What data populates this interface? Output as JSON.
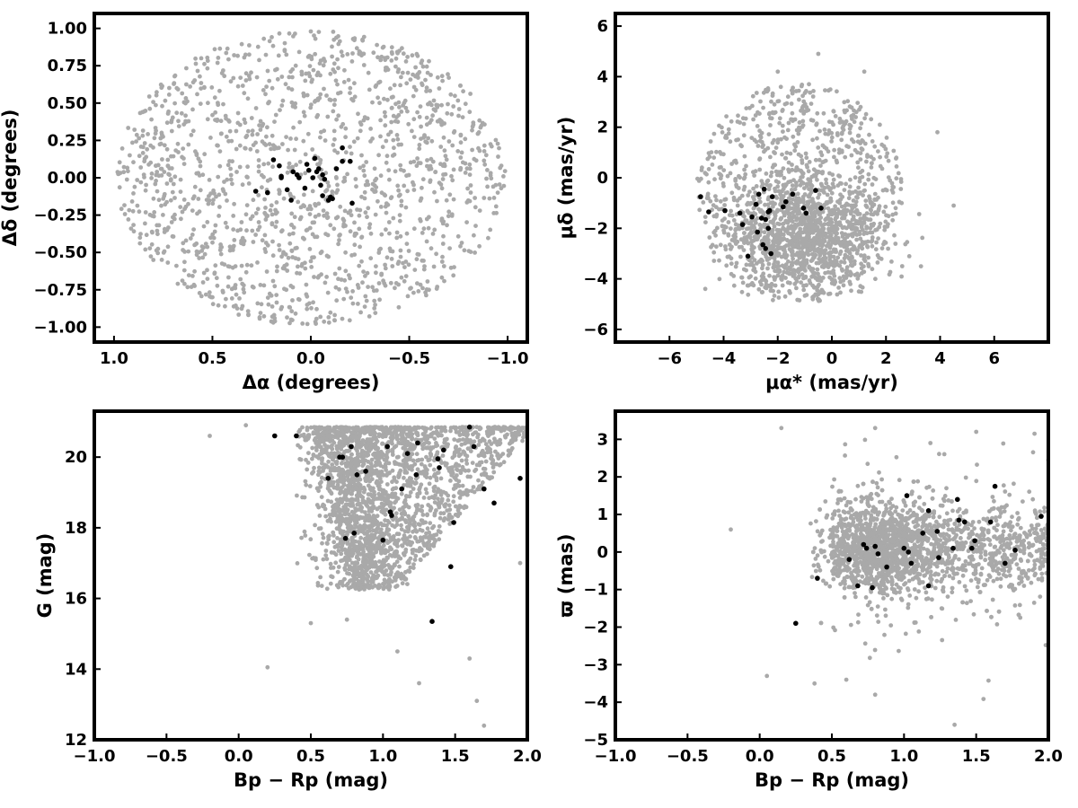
{
  "colors": {
    "field": "#a9a9a9",
    "members": "#000000"
  },
  "chart_data": [
    {
      "type": "scatter",
      "id": "position",
      "xlabel": "Δα (degrees)",
      "ylabel": "Δδ (degrees)",
      "xlim": [
        1.1,
        -1.1
      ],
      "ylim": [
        -1.1,
        1.1
      ],
      "xticks": [
        1.0,
        0.5,
        0.0,
        -0.5,
        -1.0
      ],
      "xtick_labels": [
        "1.0",
        "0.5",
        "0.0",
        "−0.5",
        "−1.0"
      ],
      "yticks": [
        -1.0,
        -0.75,
        -0.5,
        -0.25,
        0.0,
        0.25,
        0.5,
        0.75,
        1.0
      ],
      "ytick_labels": [
        "−1.00",
        "−0.75",
        "−0.50",
        "−0.25",
        "0.00",
        "0.25",
        "0.50",
        "0.75",
        "1.00"
      ],
      "grid": false,
      "series": [
        {
          "role": "field",
          "color": "#a9a9a9",
          "distribution": "uniform disk of radius 1.0 deg, ~1500 stars",
          "points": [
            [
              0.92,
              0.15
            ],
            [
              0.8,
              -0.55
            ],
            [
              0.5,
              -0.8
            ],
            [
              0.0,
              0.98
            ],
            [
              -0.45,
              0.85
            ],
            [
              -0.95,
              -0.1
            ],
            [
              -0.6,
              -0.75
            ],
            [
              0.3,
              0.4
            ],
            [
              -0.2,
              0.6
            ],
            [
              0.1,
              -0.95
            ]
          ]
        },
        {
          "role": "members",
          "color": "#000000",
          "points": [
            [
              0.28,
              -0.09
            ],
            [
              0.22,
              -0.1
            ],
            [
              0.19,
              0.12
            ],
            [
              0.16,
              0.08
            ],
            [
              0.15,
              0.0
            ],
            [
              0.15,
              0.01
            ],
            [
              0.12,
              -0.08
            ],
            [
              0.1,
              -0.15
            ],
            [
              0.09,
              0.04
            ],
            [
              0.07,
              0.02
            ],
            [
              0.06,
              0.0
            ],
            [
              0.03,
              -0.07
            ],
            [
              0.02,
              0.09
            ],
            [
              0.01,
              0.05
            ],
            [
              -0.01,
              0.0
            ],
            [
              -0.02,
              0.13
            ],
            [
              -0.03,
              0.04
            ],
            [
              -0.04,
              0.06
            ],
            [
              -0.05,
              -0.05
            ],
            [
              -0.06,
              -0.12
            ],
            [
              -0.06,
              0.02
            ],
            [
              -0.07,
              -0.01
            ],
            [
              -0.09,
              -0.15
            ],
            [
              -0.1,
              -0.13
            ],
            [
              -0.11,
              -0.14
            ],
            [
              -0.13,
              0.06
            ],
            [
              -0.16,
              0.2
            ],
            [
              -0.16,
              0.11
            ],
            [
              -0.2,
              0.11
            ],
            [
              -0.21,
              -0.17
            ]
          ]
        }
      ]
    },
    {
      "type": "scatter",
      "id": "proper-motion",
      "xlabel": "μα* (mas/yr)",
      "ylabel": "μδ (mas/yr)",
      "xlim": [
        -8,
        8
      ],
      "ylim": [
        -6.5,
        6.5
      ],
      "xticks": [
        -6,
        -4,
        -2,
        0,
        2,
        4,
        6
      ],
      "xtick_labels": [
        "−6",
        "−4",
        "−2",
        "0",
        "2",
        "4",
        "6"
      ],
      "yticks": [
        -6,
        -4,
        -2,
        0,
        2,
        4,
        6
      ],
      "ytick_labels": [
        "−6",
        "−4",
        "−2",
        "0",
        "2",
        "4",
        "6"
      ],
      "grid": false,
      "series": [
        {
          "role": "field",
          "color": "#a9a9a9",
          "distribution": "disk centered (-1.2,-0.9), radius ~3.8 mas/yr, densest near (-1,-2.5)",
          "points": [
            [
              -4.8,
              0.4
            ],
            [
              -3,
              -3.9
            ],
            [
              1,
              -4.5
            ],
            [
              2.6,
              -3.5
            ],
            [
              -2,
              4.2
            ],
            [
              -0.5,
              4.9
            ],
            [
              1.2,
              4.2
            ],
            [
              3.9,
              1.8
            ],
            [
              4.5,
              -1.1
            ],
            [
              -1.5,
              -2.5
            ]
          ]
        },
        {
          "role": "members",
          "color": "#000000",
          "points": [
            [
              -4.85,
              -0.75
            ],
            [
              -4.55,
              -1.35
            ],
            [
              -3.95,
              -1.3
            ],
            [
              -3.4,
              -1.4
            ],
            [
              -3.3,
              -1.85
            ],
            [
              -3.1,
              -3.1
            ],
            [
              -2.95,
              -1.55
            ],
            [
              -2.8,
              -1.05
            ],
            [
              -2.75,
              -2.15
            ],
            [
              -2.7,
              -0.65
            ],
            [
              -2.6,
              -1.6
            ],
            [
              -2.55,
              -2.65
            ],
            [
              -2.5,
              -0.45
            ],
            [
              -2.45,
              -1.65
            ],
            [
              -2.45,
              -2.8
            ],
            [
              -2.35,
              -1.35
            ],
            [
              -2.35,
              -2.0
            ],
            [
              -2.3,
              -1.3
            ],
            [
              -2.25,
              -3.0
            ],
            [
              -2.2,
              -0.75
            ],
            [
              -1.8,
              -1.15
            ],
            [
              -1.7,
              -0.95
            ],
            [
              -1.45,
              -0.65
            ],
            [
              -1.05,
              -1.2
            ],
            [
              -0.95,
              -1.4
            ],
            [
              -0.6,
              -0.5
            ],
            [
              -0.4,
              -1.2
            ]
          ]
        }
      ]
    },
    {
      "type": "scatter",
      "id": "cmd",
      "xlabel": "Bp − Rp (mag)",
      "ylabel": "G (mag)",
      "xlim": [
        -1.0,
        2.0
      ],
      "ylim": [
        12,
        21.3
      ],
      "y_inverted": false,
      "xticks": [
        -1.0,
        -0.5,
        0.0,
        0.5,
        1.0,
        1.5,
        2.0
      ],
      "xtick_labels": [
        "−1.0",
        "−0.5",
        "0.0",
        "0.5",
        "1.0",
        "1.5",
        "2.0"
      ],
      "yticks": [
        12,
        14,
        16,
        18,
        20
      ],
      "ytick_labels": [
        "12",
        "14",
        "16",
        "18",
        "20"
      ],
      "grid": false,
      "series": [
        {
          "role": "field",
          "color": "#a9a9a9",
          "distribution": "wedge: dense 0.5–2.0 at G 19–20.8, tapering to color ~0.85 at G 16.5",
          "points": [
            [
              -0.2,
              20.6
            ],
            [
              0.05,
              20.9
            ],
            [
              0.2,
              14.05
            ],
            [
              0.5,
              15.3
            ],
            [
              0.75,
              15.4
            ],
            [
              1.1,
              14.5
            ],
            [
              1.25,
              13.6
            ],
            [
              1.6,
              14.3
            ],
            [
              1.65,
              13.1
            ],
            [
              1.7,
              12.4
            ],
            [
              1.95,
              17.0
            ]
          ]
        },
        {
          "role": "members",
          "color": "#000000",
          "points": [
            [
              0.25,
              20.6
            ],
            [
              0.4,
              20.6
            ],
            [
              0.62,
              19.4
            ],
            [
              0.7,
              20.0
            ],
            [
              0.72,
              20.0
            ],
            [
              0.74,
              17.7
            ],
            [
              0.78,
              20.3
            ],
            [
              0.8,
              17.85
            ],
            [
              0.82,
              19.5
            ],
            [
              0.88,
              19.6
            ],
            [
              1.0,
              17.65
            ],
            [
              1.03,
              20.3
            ],
            [
              1.05,
              18.45
            ],
            [
              1.06,
              18.35
            ],
            [
              1.13,
              19.1
            ],
            [
              1.17,
              20.1
            ],
            [
              1.23,
              19.5
            ],
            [
              1.24,
              20.4
            ],
            [
              1.34,
              15.35
            ],
            [
              1.38,
              19.95
            ],
            [
              1.39,
              19.7
            ],
            [
              1.42,
              20.2
            ],
            [
              1.47,
              16.9
            ],
            [
              1.49,
              18.15
            ],
            [
              1.6,
              20.85
            ],
            [
              1.63,
              20.3
            ],
            [
              1.7,
              19.1
            ],
            [
              1.77,
              18.7
            ],
            [
              1.95,
              19.4
            ]
          ]
        }
      ]
    },
    {
      "type": "scatter",
      "id": "parallax",
      "xlabel": "Bp − Rp (mag)",
      "ylabel": "ϖ (mas)",
      "xlim": [
        -1.0,
        2.0
      ],
      "ylim": [
        -5,
        3.75
      ],
      "xticks": [
        -1.0,
        -0.5,
        0.0,
        0.5,
        1.0,
        1.5,
        2.0
      ],
      "xtick_labels": [
        "−1.0",
        "−0.5",
        "0.0",
        "0.5",
        "1.0",
        "1.5",
        "2.0"
      ],
      "yticks": [
        -5,
        -4,
        -3,
        -2,
        -1,
        0,
        1,
        2,
        3
      ],
      "ytick_labels": [
        "−5",
        "−4",
        "−3",
        "−2",
        "−1",
        "0",
        "1",
        "2",
        "3"
      ],
      "grid": false,
      "series": [
        {
          "role": "field",
          "color": "#a9a9a9",
          "distribution": "concentrated at ϖ≈0.1 for color 0.5–2.0, spread ±1.5",
          "points": [
            [
              -0.2,
              0.6
            ],
            [
              0.05,
              -3.3
            ],
            [
              0.15,
              3.3
            ],
            [
              0.38,
              -3.5
            ],
            [
              0.6,
              -3.4
            ],
            [
              0.8,
              3.3
            ],
            [
              0.8,
              -3.8
            ],
            [
              1.35,
              -4.6
            ],
            [
              1.5,
              3.2
            ],
            [
              2.0,
              2.45
            ]
          ]
        },
        {
          "role": "members",
          "color": "#000000",
          "points": [
            [
              0.25,
              -1.9
            ],
            [
              0.4,
              -0.7
            ],
            [
              0.62,
              -0.2
            ],
            [
              0.68,
              -0.9
            ],
            [
              0.72,
              0.2
            ],
            [
              0.74,
              0.1
            ],
            [
              0.78,
              -0.95
            ],
            [
              0.8,
              0.15
            ],
            [
              0.82,
              -0.05
            ],
            [
              0.88,
              -0.4
            ],
            [
              1.0,
              0.1
            ],
            [
              1.02,
              1.5
            ],
            [
              1.03,
              0.0
            ],
            [
              1.05,
              -0.3
            ],
            [
              1.13,
              0.5
            ],
            [
              1.17,
              -0.9
            ],
            [
              1.17,
              1.1
            ],
            [
              1.23,
              0.55
            ],
            [
              1.24,
              -0.15
            ],
            [
              1.34,
              0.1
            ],
            [
              1.37,
              1.4
            ],
            [
              1.38,
              0.85
            ],
            [
              1.42,
              0.8
            ],
            [
              1.47,
              0.1
            ],
            [
              1.49,
              0.3
            ],
            [
              1.6,
              0.8
            ],
            [
              1.63,
              1.75
            ],
            [
              1.7,
              -0.3
            ],
            [
              1.77,
              0.05
            ],
            [
              1.95,
              0.95
            ]
          ]
        }
      ]
    }
  ]
}
